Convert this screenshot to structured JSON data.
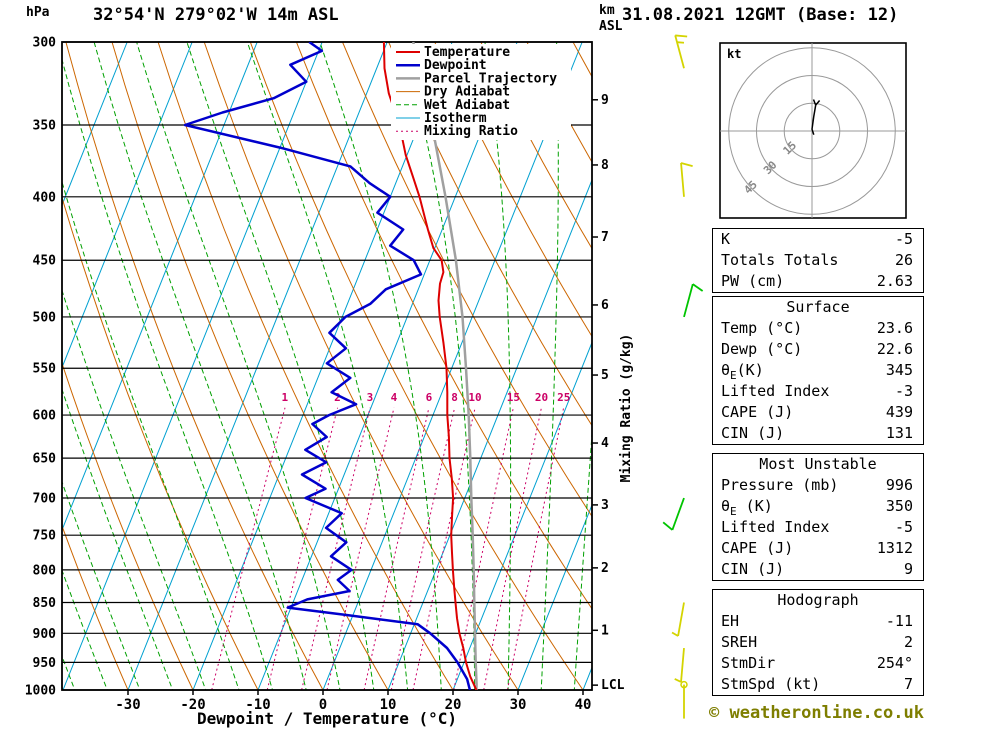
{
  "header": {
    "pressure_unit": "hPa",
    "title": "32°54'N 279°02'W 14m ASL",
    "altitude_unit_line1": "km",
    "altitude_unit_line2": "ASL",
    "date": "31.08.2021 12GMT (Base: 12)"
  },
  "axes": {
    "x_label": "Dewpoint / Temperature (°C)",
    "mixing_ratio_label": "Mixing Ratio (g/kg)",
    "pressure_ticks": [
      300,
      350,
      400,
      450,
      500,
      550,
      600,
      650,
      700,
      750,
      800,
      850,
      900,
      950,
      1000
    ],
    "temp_ticks": [
      -30,
      -20,
      -10,
      0,
      10,
      20,
      30,
      40
    ],
    "km_scale": [
      {
        "label": "9",
        "p": 334
      },
      {
        "label": "8",
        "p": 377
      },
      {
        "label": "7",
        "p": 431
      },
      {
        "label": "6",
        "p": 489
      },
      {
        "label": "5",
        "p": 557
      },
      {
        "label": "4",
        "p": 632
      },
      {
        "label": "3",
        "p": 709
      },
      {
        "label": "2",
        "p": 797
      },
      {
        "label": "1",
        "p": 895
      },
      {
        "label": "LCL",
        "p": 991
      }
    ]
  },
  "legend": {
    "items": [
      {
        "label": "Temperature",
        "color": "#dd0000",
        "width": 2,
        "dash": ""
      },
      {
        "label": "Dewpoint",
        "color": "#0000cc",
        "width": 2.5,
        "dash": ""
      },
      {
        "label": "Parcel Trajectory",
        "color": "#a0a0a0",
        "width": 2.5,
        "dash": ""
      },
      {
        "label": "Dry Adiabat",
        "color": "#cc6600",
        "width": 1,
        "dash": ""
      },
      {
        "label": "Wet Adiabat",
        "color": "#00a000",
        "width": 1,
        "dash": "5,3"
      },
      {
        "label": "Isotherm",
        "color": "#00a0d0",
        "width": 1,
        "dash": ""
      },
      {
        "label": "Mixing Ratio",
        "color": "#cc0066",
        "width": 1,
        "dash": "2,3"
      }
    ]
  },
  "chart_data": {
    "type": "line",
    "subtype": "skew-t-log-p-sounding",
    "title": "32°54'N 279°02'W 14m ASL",
    "xlabel": "Dewpoint / Temperature (°C)",
    "ylabel": "hPa",
    "x_range": [
      -40,
      40
    ],
    "pressure_range": [
      300,
      1000
    ],
    "series": [
      {
        "name": "Temperature",
        "color": "#dd0000",
        "width": 2,
        "points": [
          [
            1000,
            23.6
          ],
          [
            975,
            21.8
          ],
          [
            950,
            20.3
          ],
          [
            925,
            19.0
          ],
          [
            900,
            17.5
          ],
          [
            875,
            16.2
          ],
          [
            850,
            15.0
          ],
          [
            825,
            13.8
          ],
          [
            800,
            12.6
          ],
          [
            775,
            11.4
          ],
          [
            750,
            10.2
          ],
          [
            725,
            9.2
          ],
          [
            700,
            8.2
          ],
          [
            675,
            6.8
          ],
          [
            650,
            5.2
          ],
          [
            625,
            3.8
          ],
          [
            600,
            2.2
          ],
          [
            575,
            0.8
          ],
          [
            550,
            -0.8
          ],
          [
            525,
            -2.8
          ],
          [
            500,
            -5.0
          ],
          [
            485,
            -6.2
          ],
          [
            470,
            -7.0
          ],
          [
            460,
            -7.2
          ],
          [
            450,
            -8.2
          ],
          [
            440,
            -10.2
          ],
          [
            425,
            -12.2
          ],
          [
            400,
            -15.5
          ],
          [
            385,
            -17.8
          ],
          [
            370,
            -20.2
          ],
          [
            350,
            -23.0
          ],
          [
            340,
            -24.8
          ],
          [
            330,
            -26.6
          ],
          [
            315,
            -28.8
          ],
          [
            300,
            -30.5
          ]
        ]
      },
      {
        "name": "Dewpoint",
        "color": "#0000cc",
        "width": 2.5,
        "points": [
          [
            1000,
            22.6
          ],
          [
            980,
            21.5
          ],
          [
            950,
            19.0
          ],
          [
            925,
            16.5
          ],
          [
            900,
            13.0
          ],
          [
            885,
            10.5
          ],
          [
            870,
            -1.0
          ],
          [
            858,
            -10.5
          ],
          [
            845,
            -8.0
          ],
          [
            832,
            -2.0
          ],
          [
            815,
            -4.5
          ],
          [
            800,
            -3.0
          ],
          [
            780,
            -7.0
          ],
          [
            760,
            -5.5
          ],
          [
            740,
            -9.5
          ],
          [
            720,
            -8.0
          ],
          [
            700,
            -14.5
          ],
          [
            688,
            -12.0
          ],
          [
            670,
            -16.5
          ],
          [
            655,
            -13.5
          ],
          [
            640,
            -17.5
          ],
          [
            625,
            -15.0
          ],
          [
            610,
            -18.0
          ],
          [
            600,
            -16.0
          ],
          [
            588,
            -12.5
          ],
          [
            575,
            -17.0
          ],
          [
            560,
            -15.0
          ],
          [
            545,
            -19.5
          ],
          [
            530,
            -17.5
          ],
          [
            515,
            -21.0
          ],
          [
            500,
            -19.5
          ],
          [
            488,
            -16.5
          ],
          [
            475,
            -15.0
          ],
          [
            462,
            -10.5
          ],
          [
            450,
            -12.5
          ],
          [
            438,
            -17.0
          ],
          [
            425,
            -16.0
          ],
          [
            412,
            -21.0
          ],
          [
            400,
            -20.0
          ],
          [
            390,
            -24.0
          ],
          [
            378,
            -28.0
          ],
          [
            365,
            -40.0
          ],
          [
            350,
            -56.0
          ],
          [
            342,
            -51.0
          ],
          [
            333,
            -44.0
          ],
          [
            323,
            -40.0
          ],
          [
            313,
            -43.5
          ],
          [
            305,
            -39.5
          ],
          [
            300,
            -42.0
          ]
        ]
      },
      {
        "name": "Parcel Trajectory",
        "color": "#a0a0a0",
        "width": 2.5,
        "points": [
          [
            1000,
            23.6
          ],
          [
            990,
            23.3
          ],
          [
            950,
            21.8
          ],
          [
            900,
            19.9
          ],
          [
            850,
            17.9
          ],
          [
            800,
            15.8
          ],
          [
            750,
            13.5
          ],
          [
            700,
            11.0
          ],
          [
            650,
            8.4
          ],
          [
            600,
            5.5
          ],
          [
            550,
            2.2
          ],
          [
            500,
            -1.5
          ],
          [
            450,
            -6.0
          ],
          [
            400,
            -11.5
          ],
          [
            350,
            -18.0
          ],
          [
            300,
            -26.0
          ]
        ]
      }
    ],
    "mixing_ratio_lines": {
      "values": [
        1,
        2,
        3,
        4,
        6,
        8,
        10,
        15,
        20,
        25
      ],
      "color": "#cc0066"
    },
    "background": {
      "isotherm_color": "#00a0d0",
      "isotherm_step": 10,
      "dry_adiabat_color": "#cc6600",
      "dry_adiabat_step": 10,
      "wet_adiabat_color": "#00a000",
      "wet_adiabat_step": 5,
      "grid_color": "#000000"
    },
    "wind_barbs": [
      {
        "p": 315,
        "speed_kt": 15,
        "dir_deg": 345,
        "color": "#d4d400"
      },
      {
        "p": 400,
        "speed_kt": 10,
        "dir_deg": 355,
        "color": "#d4d400"
      },
      {
        "p": 500,
        "speed_kt": 10,
        "dir_deg": 15,
        "color": "#00c400"
      },
      {
        "p": 700,
        "speed_kt": 10,
        "dir_deg": 200,
        "color": "#00c400"
      },
      {
        "p": 850,
        "speed_kt": 5,
        "dir_deg": 190,
        "color": "#d4d400"
      },
      {
        "p": 925,
        "speed_kt": 5,
        "dir_deg": 185,
        "color": "#d4d400"
      },
      {
        "p": 990,
        "speed_kt": 3,
        "dir_deg": 180,
        "color": "#d4d400"
      }
    ]
  },
  "hodograph": {
    "unit": "kt",
    "rings_kt": [
      15,
      30,
      45
    ],
    "ring_label_color": "#888888",
    "trace_kt": [
      [
        1,
        -2
      ],
      [
        0,
        1
      ],
      [
        1,
        8
      ],
      [
        2,
        14
      ]
    ],
    "storm_motion": {
      "dir_deg": "254°",
      "speed_kt": "7"
    }
  },
  "panels": [
    {
      "name": "indices",
      "title": "",
      "rows": [
        [
          "K",
          "-5"
        ],
        [
          "Totals Totals",
          "26"
        ],
        [
          "PW (cm)",
          "2.63"
        ]
      ],
      "gap": false
    },
    {
      "name": "surface",
      "title": "Surface",
      "rows": [
        [
          "Temp (°C)",
          "23.6"
        ],
        [
          "Dewp (°C)",
          "22.6"
        ],
        [
          "θE(K)",
          "345"
        ],
        [
          "Lifted Index",
          "-3"
        ],
        [
          "CAPE (J)",
          "439"
        ],
        [
          "CIN (J)",
          "131"
        ]
      ],
      "gap": true
    },
    {
      "name": "most-unstable",
      "title": "Most Unstable",
      "rows": [
        [
          "Pressure (mb)",
          "996"
        ],
        [
          "θE (K)",
          "350"
        ],
        [
          "Lifted Index",
          "-5"
        ],
        [
          "CAPE (J)",
          "1312"
        ],
        [
          "CIN (J)",
          "9"
        ]
      ],
      "gap": true
    },
    {
      "name": "hodograph-stats",
      "title": "Hodograph",
      "rows": [
        [
          "EH",
          "-11"
        ],
        [
          "SREH",
          "2"
        ],
        [
          "StmDir",
          "254°"
        ],
        [
          "StmSpd (kt)",
          "7"
        ]
      ],
      "gap": false
    }
  ],
  "footer": {
    "copyright": "© weatheronline.co.uk"
  }
}
